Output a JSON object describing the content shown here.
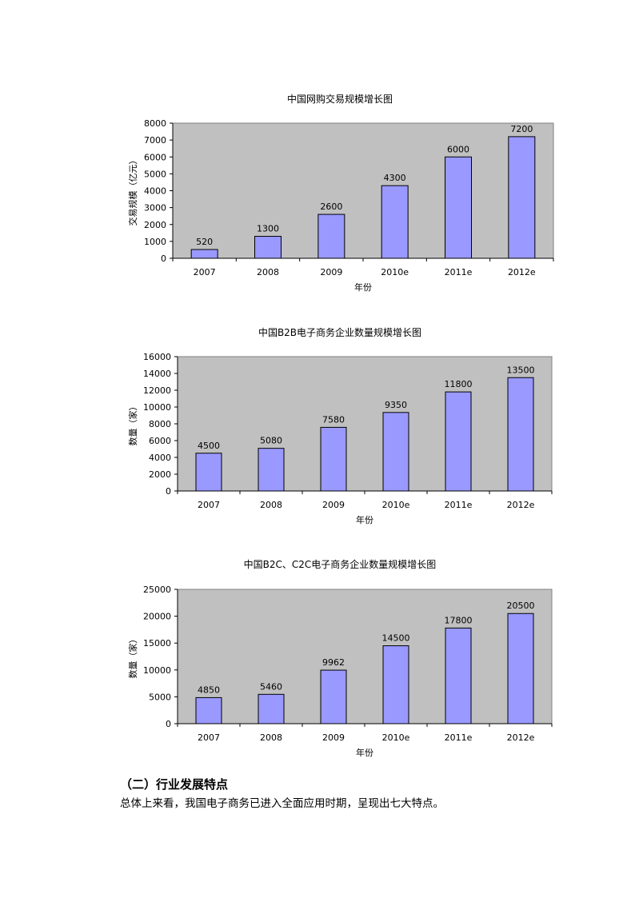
{
  "chart_data": [
    {
      "type": "bar",
      "title": "中国网购交易规模增长图",
      "xlabel": "年份",
      "ylabel": "交易规模（亿元）",
      "categories": [
        "2007",
        "2008",
        "2009",
        "2010e",
        "2011e",
        "2012e"
      ],
      "values": [
        520,
        1300,
        2600,
        4300,
        6000,
        7200
      ],
      "ylim": [
        0,
        8000
      ],
      "yticks": [
        0,
        1000,
        2000,
        3000,
        4000,
        5000,
        6000,
        7000,
        8000
      ],
      "grid": false,
      "legend": "none",
      "colors": {
        "bar": "#9999FF",
        "plot_bg": "#C0C0C0",
        "border": "#000000"
      }
    },
    {
      "type": "bar",
      "title": "中国B2B电子商务企业数量规模增长图",
      "xlabel": "年份",
      "ylabel": "数量（家）",
      "categories": [
        "2007",
        "2008",
        "2009",
        "2010e",
        "2011e",
        "2012e"
      ],
      "values": [
        4500,
        5080,
        7580,
        9350,
        11800,
        13500
      ],
      "ylim": [
        0,
        16000
      ],
      "yticks": [
        0,
        2000,
        4000,
        6000,
        8000,
        10000,
        12000,
        14000,
        16000
      ],
      "grid": false,
      "legend": "none",
      "colors": {
        "bar": "#9999FF",
        "plot_bg": "#C0C0C0",
        "border": "#000000"
      }
    },
    {
      "type": "bar",
      "title": "中国B2C、C2C电子商务企业数量规模增长图",
      "xlabel": "年份",
      "ylabel": "数量（家）",
      "categories": [
        "2007",
        "2008",
        "2009",
        "2010e",
        "2011e",
        "2012e"
      ],
      "values": [
        4850,
        5460,
        9962,
        14500,
        17800,
        20500
      ],
      "ylim": [
        0,
        25000
      ],
      "yticks": [
        0,
        5000,
        10000,
        15000,
        20000,
        25000
      ],
      "grid": false,
      "legend": "none",
      "colors": {
        "bar": "#9999FF",
        "plot_bg": "#C0C0C0",
        "border": "#000000"
      }
    }
  ],
  "section": {
    "heading": "（二）行业发展特点",
    "body": "总体上来看，我国电子商务已进入全面应用时期，呈现出七大特点。"
  }
}
